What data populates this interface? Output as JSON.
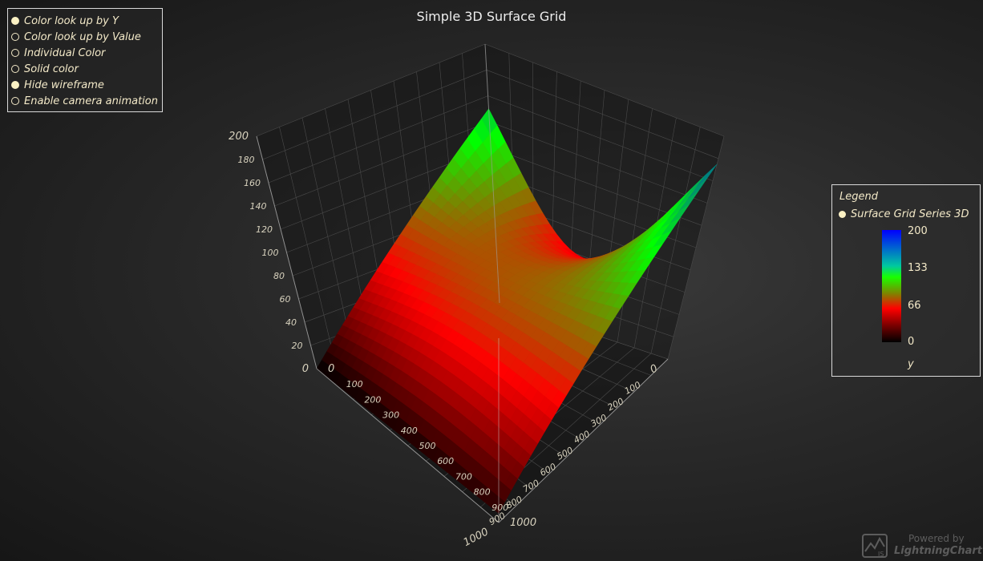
{
  "options": {
    "items": [
      {
        "label": "Color look up by Y",
        "checked": true
      },
      {
        "label": "Color look up by Value",
        "checked": false
      },
      {
        "label": "Individual Color",
        "checked": false
      },
      {
        "label": "Solid color",
        "checked": false
      },
      {
        "label": "Hide wireframe",
        "checked": true
      },
      {
        "label": "Enable camera animation",
        "checked": false
      }
    ]
  },
  "legend": {
    "title": "Legend",
    "entry": "Surface Grid Series 3D",
    "ticks": [
      "200",
      "133",
      "66",
      "0"
    ],
    "unit": "y"
  },
  "watermark": {
    "line1": "Powered by",
    "line2": "LightningChart",
    "badge": "JS"
  },
  "colors": {
    "accent": "#f3e9c8",
    "grid": "#4a4a4a",
    "axis_text": "#d8d2be"
  },
  "chart_data": {
    "type": "surface",
    "title": "Simple 3D Surface Grid",
    "x_axis": {
      "range": [
        0,
        1000
      ],
      "ticks": [
        "0",
        "100",
        "200",
        "300",
        "400",
        "500",
        "600",
        "700",
        "800",
        "900",
        "1000"
      ]
    },
    "y_axis": {
      "range": [
        0,
        200
      ],
      "ticks": [
        "0",
        "20",
        "40",
        "60",
        "80",
        "100",
        "120",
        "140",
        "160",
        "180",
        "200"
      ]
    },
    "z_axis": {
      "range": [
        0,
        1000
      ],
      "ticks": [
        "0",
        "100",
        "200",
        "300",
        "400",
        "500",
        "600",
        "700",
        "800",
        "900",
        "1000"
      ]
    },
    "color_lookup": "by Y",
    "palette": [
      {
        "value": 0,
        "color": "#000000"
      },
      {
        "value": 66,
        "color": "#ff0000"
      },
      {
        "value": 133,
        "color": "#00ff00"
      },
      {
        "value": 200,
        "color": "#0000ff"
      }
    ],
    "corner_values": [
      {
        "x": 0,
        "z": 0,
        "y": 150
      },
      {
        "x": 1000,
        "z": 0,
        "y": 0
      },
      {
        "x": 1000,
        "z": 1000,
        "y": 10
      },
      {
        "x": 0,
        "z": 1000,
        "y": 175
      },
      {
        "x": 500,
        "z": 500,
        "y": 70
      }
    ],
    "grid": true
  }
}
